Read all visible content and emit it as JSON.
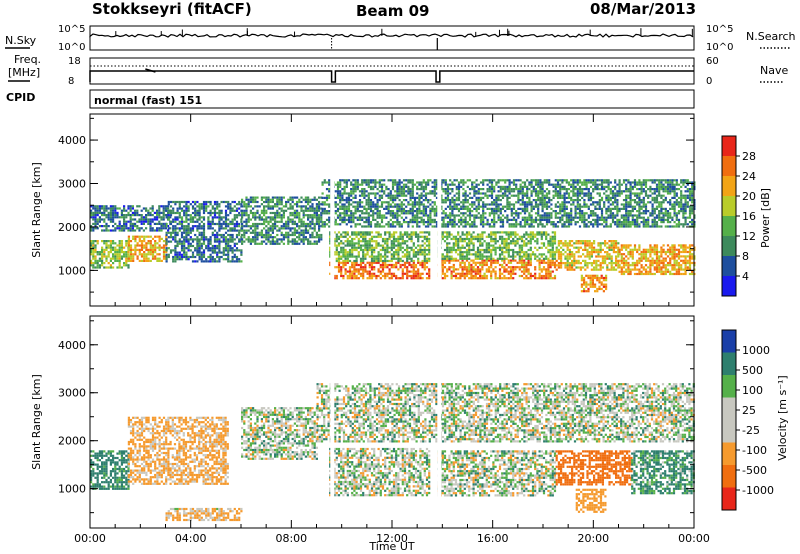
{
  "header": {
    "station": "Stokkseyri (fitACF)",
    "beam": "Beam 09",
    "date": "08/Mar/2013"
  },
  "side_labels": {
    "nsky": "N.Sky",
    "nsearch": "N.Search",
    "freq": "Freq.",
    "mhz": "[MHz]",
    "cpid": "CPID",
    "nave": "Nave",
    "cpid_value": "normal (fast) 151"
  },
  "noise_panel": {
    "left_ticks": [
      "10^5",
      "10^0"
    ],
    "right_ticks": [
      "10^5",
      "10^0"
    ]
  },
  "freq_panel": {
    "left_ticks": [
      "18",
      "8"
    ],
    "right_ticks": [
      "60",
      "0"
    ]
  },
  "x_axis": {
    "label": "Time UT",
    "ticks": [
      "00:00",
      "04:00",
      "08:00",
      "12:00",
      "16:00",
      "20:00",
      "00:00"
    ]
  },
  "colors": {
    "power_scale": [
      "#1a1aee",
      "#1e4f9e",
      "#3d8a5c",
      "#55b04a",
      "#b9cc2a",
      "#f2a416",
      "#f06e10",
      "#e8261a"
    ],
    "velocity_scale": [
      "#e8261a",
      "#f06e10",
      "#f59a2e",
      "#c8c8c0",
      "#c8c8c0",
      "#55b04a",
      "#2e7f6e",
      "#1a3fa8"
    ]
  },
  "chart_data": [
    {
      "type": "heatmap",
      "name": "power_panel",
      "title": "",
      "xlabel": "",
      "ylabel": "Slant Range [km]",
      "y_ticks": [
        "1000",
        "2000",
        "3000",
        "4000"
      ],
      "xlim": [
        0,
        24
      ],
      "ylim": [
        180,
        4600
      ],
      "colorbar": {
        "label": "Power [dB]",
        "ticks": [
          "4",
          "8",
          "12",
          "16",
          "20",
          "24",
          "28"
        ],
        "range": [
          0,
          32
        ]
      },
      "echo_regions": [
        {
          "t0": 0.0,
          "t1": 1.5,
          "r0": 1050,
          "r1": 1700,
          "value": 16
        },
        {
          "t0": 1.5,
          "t1": 3.0,
          "r0": 1200,
          "r1": 1800,
          "value": 22
        },
        {
          "t0": 0.0,
          "t1": 3.2,
          "r0": 1900,
          "r1": 2500,
          "value": 8
        },
        {
          "t0": 3.0,
          "t1": 6.0,
          "r0": 1200,
          "r1": 2600,
          "value": 8
        },
        {
          "t0": 6.0,
          "t1": 9.2,
          "r0": 1600,
          "r1": 2700,
          "value": 10
        },
        {
          "t0": 9.5,
          "t1": 13.5,
          "r0": 800,
          "r1": 1200,
          "value": 26
        },
        {
          "t0": 9.5,
          "t1": 13.5,
          "r0": 1200,
          "r1": 1900,
          "value": 14
        },
        {
          "t0": 13.8,
          "t1": 18.5,
          "r0": 820,
          "r1": 1250,
          "value": 24
        },
        {
          "t0": 13.8,
          "t1": 18.5,
          "r0": 1250,
          "r1": 1900,
          "value": 14
        },
        {
          "t0": 18.5,
          "t1": 21.0,
          "r0": 1000,
          "r1": 1700,
          "value": 20
        },
        {
          "t0": 19.5,
          "t1": 20.5,
          "r0": 500,
          "r1": 900,
          "value": 24
        },
        {
          "t0": 21.0,
          "t1": 24.0,
          "r0": 900,
          "r1": 1600,
          "value": 22
        },
        {
          "t0": 9.2,
          "t1": 24.0,
          "r0": 2000,
          "r1": 3100,
          "value": 10
        }
      ]
    },
    {
      "type": "heatmap",
      "name": "velocity_panel",
      "title": "",
      "xlabel": "Time UT",
      "ylabel": "Slant Range [km]",
      "y_ticks": [
        "1000",
        "2000",
        "3000",
        "4000"
      ],
      "xlim": [
        0,
        24
      ],
      "ylim": [
        180,
        4600
      ],
      "colorbar": {
        "label": "Velocity [m s⁻¹]",
        "ticks": [
          "-1000",
          "-500",
          "-100",
          "-25",
          "25",
          "100",
          "500",
          "1000"
        ],
        "range": [
          -1250,
          1250
        ]
      },
      "echo_regions": [
        {
          "t0": 0.0,
          "t1": 1.5,
          "r0": 1000,
          "r1": 1800,
          "value": 200
        },
        {
          "t0": 1.5,
          "t1": 5.5,
          "r0": 1100,
          "r1": 2500,
          "value": -150
        },
        {
          "t0": 3.0,
          "t1": 6.0,
          "r0": 350,
          "r1": 600,
          "value": -120
        },
        {
          "t0": 6.0,
          "t1": 9.0,
          "r0": 1600,
          "r1": 2700,
          "value": 0
        },
        {
          "t0": 9.5,
          "t1": 13.5,
          "r0": 850,
          "r1": 1850,
          "value": 0
        },
        {
          "t0": 13.8,
          "t1": 18.5,
          "r0": 850,
          "r1": 1800,
          "value": 0
        },
        {
          "t0": 18.5,
          "t1": 21.5,
          "r0": 1100,
          "r1": 1800,
          "value": -700
        },
        {
          "t0": 19.3,
          "t1": 20.5,
          "r0": 500,
          "r1": 1000,
          "value": -300
        },
        {
          "t0": 21.5,
          "t1": 24.0,
          "r0": 900,
          "r1": 1800,
          "value": 150
        },
        {
          "t0": 9.0,
          "t1": 24.0,
          "r0": 2000,
          "r1": 3200,
          "value": 0
        }
      ]
    }
  ]
}
